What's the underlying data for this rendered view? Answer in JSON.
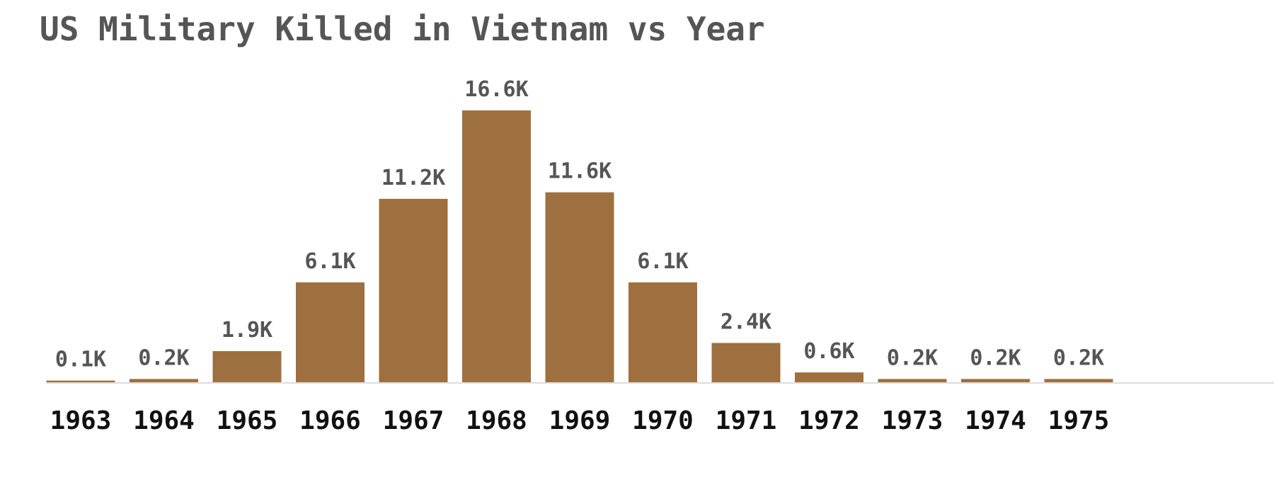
{
  "chart_data": {
    "type": "bar",
    "title": "US Military Killed in Vietnam vs Year",
    "xlabel": "",
    "ylabel": "",
    "categories": [
      "1963",
      "1964",
      "1965",
      "1966",
      "1967",
      "1968",
      "1969",
      "1970",
      "1971",
      "1972",
      "1973",
      "1974",
      "1975"
    ],
    "values": [
      0.1,
      0.2,
      1.9,
      6.1,
      11.2,
      16.6,
      11.6,
      6.1,
      2.4,
      0.6,
      0.2,
      0.2,
      0.2
    ],
    "data_labels": [
      "0.1K",
      "0.2K",
      "1.9K",
      "6.1K",
      "11.2K",
      "16.6K",
      "11.6K",
      "6.1K",
      "2.4K",
      "0.6K",
      "0.2K",
      "0.2K",
      "0.2K"
    ],
    "ylim": [
      0,
      16.6
    ],
    "grid": false,
    "legend": "none",
    "colors": {
      "bar": "#9e703f",
      "title": "#555555",
      "value_label": "#555555",
      "tick_label": "#111111"
    }
  }
}
